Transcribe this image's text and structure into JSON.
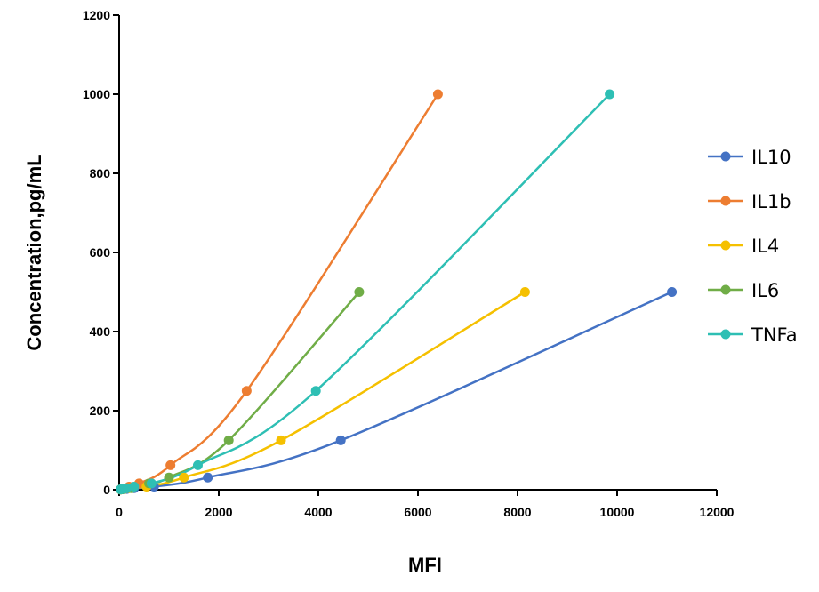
{
  "chart_data": {
    "type": "line",
    "title": "",
    "xlabel": "MFI",
    "ylabel": "Concentration,pg/mL",
    "xlim": [
      0,
      12000
    ],
    "ylim": [
      0,
      1200
    ],
    "xticks": [
      0,
      2000,
      4000,
      6000,
      8000,
      10000,
      12000
    ],
    "yticks": [
      0,
      200,
      400,
      600,
      800,
      1000,
      1200
    ],
    "xtick_labels": [
      "0",
      "2000",
      "4000",
      "6000",
      "8000",
      "10000",
      "12000"
    ],
    "ytick_labels": [
      "0",
      "200",
      "400",
      "600",
      "800",
      "1000",
      "1200"
    ],
    "grid": false,
    "legend_position": "right",
    "series": [
      {
        "name": "IL10",
        "color": "#4472C4",
        "points": [
          [
            30,
            0.5
          ],
          [
            80,
            1
          ],
          [
            150,
            2
          ],
          [
            300,
            4
          ],
          [
            700,
            8
          ],
          [
            1780,
            31
          ],
          [
            4450,
            125
          ],
          [
            11100,
            500
          ]
        ]
      },
      {
        "name": "IL1b",
        "color": "#ED7D31",
        "points": [
          [
            30,
            1
          ],
          [
            80,
            2
          ],
          [
            150,
            4
          ],
          [
            200,
            8
          ],
          [
            400,
            16
          ],
          [
            1030,
            62
          ],
          [
            2560,
            250
          ],
          [
            6400,
            1000
          ]
        ]
      },
      {
        "name": "IL4",
        "color": "#F5C000",
        "points": [
          [
            30,
            0.5
          ],
          [
            60,
            1
          ],
          [
            100,
            2
          ],
          [
            200,
            4
          ],
          [
            550,
            8
          ],
          [
            1300,
            31
          ],
          [
            3250,
            125
          ],
          [
            8150,
            500
          ]
        ]
      },
      {
        "name": "IL6",
        "color": "#70AD47",
        "points": [
          [
            30,
            0.5
          ],
          [
            60,
            1
          ],
          [
            100,
            2
          ],
          [
            250,
            4
          ],
          [
            600,
            16
          ],
          [
            1000,
            31
          ],
          [
            2200,
            125
          ],
          [
            4820,
            500
          ]
        ]
      },
      {
        "name": "TNFa",
        "color": "#2EBFB4",
        "points": [
          [
            30,
            1
          ],
          [
            80,
            2
          ],
          [
            150,
            4
          ],
          [
            300,
            8
          ],
          [
            650,
            16
          ],
          [
            1580,
            62
          ],
          [
            3950,
            250
          ],
          [
            9850,
            1000
          ]
        ]
      }
    ]
  }
}
